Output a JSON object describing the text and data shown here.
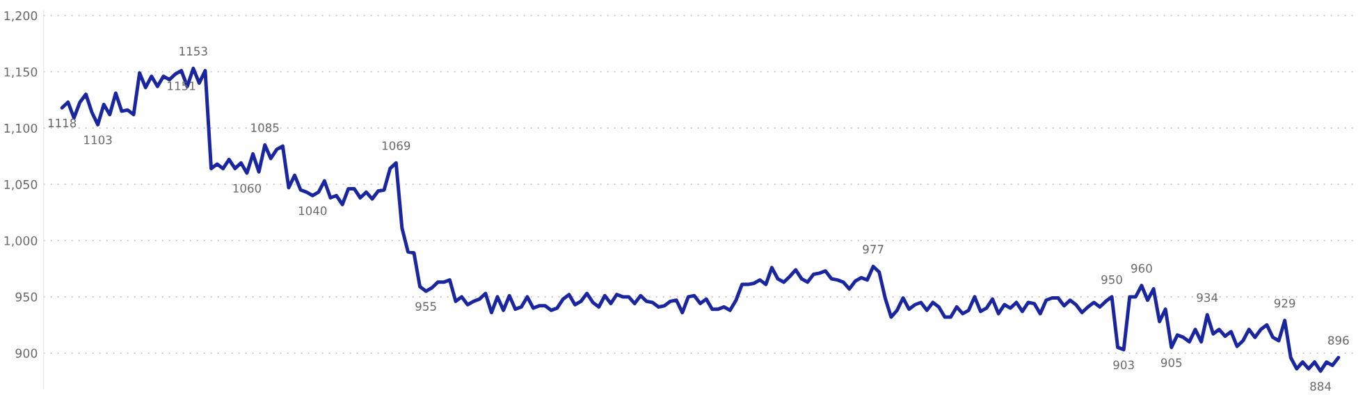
{
  "chart_data": {
    "type": "line",
    "categories": [
      null,
      null,
      null,
      null,
      null,
      null,
      null,
      null,
      null,
      null,
      null,
      null,
      null,
      null,
      null,
      null,
      null,
      null,
      null,
      null,
      null,
      null,
      null,
      null,
      null,
      null,
      null,
      null,
      null,
      null,
      null,
      null,
      null,
      null,
      null,
      null,
      null,
      null,
      null,
      null,
      null,
      null,
      null,
      null,
      null,
      null,
      null,
      null,
      null,
      null,
      null,
      null,
      null,
      null,
      null,
      null,
      null,
      null,
      null,
      null,
      null,
      null,
      null,
      null,
      null,
      null,
      null,
      null,
      null,
      null,
      null,
      null,
      null,
      null,
      null,
      null,
      null,
      null,
      null,
      null,
      null,
      null,
      null,
      null,
      null,
      null,
      null,
      null,
      null,
      null,
      null,
      null,
      null,
      null,
      null,
      null,
      null,
      null,
      null,
      null,
      null,
      null,
      null,
      null,
      null,
      null,
      null,
      null,
      null,
      null,
      null,
      null,
      null,
      null,
      null,
      null,
      null,
      null,
      null,
      null,
      null,
      null,
      null,
      null,
      null,
      null,
      null,
      null,
      null,
      null,
      null,
      null,
      null,
      null,
      null,
      null,
      null,
      null,
      null,
      null,
      null,
      null,
      null,
      null,
      null,
      null,
      null,
      null,
      null,
      null,
      null,
      null,
      null,
      null,
      null,
      null,
      null,
      null,
      null,
      null,
      null,
      null,
      null,
      null,
      null,
      null,
      null,
      null,
      null,
      null,
      null,
      null,
      null,
      null,
      null,
      null,
      null,
      null,
      null,
      null,
      null,
      null,
      null,
      null,
      null,
      null,
      null,
      null,
      null,
      null,
      null,
      null,
      null,
      null,
      null,
      null,
      null,
      null,
      null,
      null,
      null,
      null,
      null,
      null,
      null,
      null,
      null,
      null,
      null,
      null,
      null,
      null,
      null,
      null,
      null
    ],
    "series": [
      {
        "color": "#1a26a0",
        "values": [
          1118,
          1123,
          1109,
          1123,
          1130,
          1114,
          1103,
          1121,
          1112,
          1131,
          1115,
          1116,
          1112,
          1149,
          1136,
          1146,
          1137,
          1146,
          1143,
          1148,
          1151,
          1137,
          1153,
          1140,
          1151,
          1064,
          1068,
          1064,
          1072,
          1064,
          1069,
          1060,
          1077,
          1061,
          1085,
          1073,
          1081,
          1084,
          1047,
          1058,
          1045,
          1043,
          1040,
          1043,
          1053,
          1038,
          1040,
          1032,
          1046,
          1046,
          1038,
          1043,
          1037,
          1044,
          1045,
          1064,
          1069,
          1011,
          990,
          989,
          959,
          955,
          958,
          963,
          963,
          965,
          946,
          950,
          943,
          946,
          948,
          953,
          936,
          950,
          938,
          951,
          939,
          941,
          950,
          940,
          942,
          942,
          938,
          940,
          948,
          952,
          943,
          946,
          953,
          945,
          941,
          951,
          944,
          952,
          950,
          950,
          944,
          951,
          946,
          945,
          941,
          942,
          946,
          947,
          936,
          950,
          951,
          944,
          948,
          939,
          939,
          941,
          938,
          947,
          961,
          961,
          962,
          965,
          961,
          976,
          966,
          963,
          968,
          974,
          966,
          963,
          970,
          971,
          973,
          966,
          965,
          963,
          957,
          964,
          967,
          965,
          977,
          972,
          949,
          932,
          938,
          949,
          939,
          943,
          945,
          938,
          945,
          941,
          932,
          932,
          941,
          935,
          938,
          950,
          937,
          940,
          948,
          935,
          943,
          940,
          945,
          937,
          945,
          944,
          935,
          947,
          949,
          949,
          942,
          947,
          943,
          936,
          941,
          945,
          941,
          946,
          950,
          905,
          903,
          950,
          950,
          960,
          947,
          957,
          928,
          939,
          905,
          916,
          914,
          910,
          921,
          910,
          934,
          917,
          921,
          915,
          919,
          906,
          911,
          921,
          914,
          921,
          925,
          914,
          911,
          929,
          896,
          886,
          892,
          886,
          892,
          884,
          892,
          889,
          896
        ],
        "value_labels": [
          "1118",
          null,
          null,
          null,
          null,
          null,
          "1103",
          null,
          null,
          null,
          null,
          null,
          null,
          null,
          null,
          null,
          null,
          null,
          null,
          null,
          "1151",
          null,
          "1153",
          null,
          null,
          null,
          null,
          null,
          null,
          null,
          null,
          "1060",
          null,
          null,
          "1085",
          null,
          null,
          null,
          null,
          null,
          null,
          null,
          "1040",
          null,
          null,
          null,
          null,
          null,
          null,
          null,
          null,
          null,
          null,
          null,
          null,
          null,
          "1069",
          null,
          null,
          null,
          null,
          "955",
          null,
          null,
          null,
          null,
          null,
          null,
          null,
          null,
          null,
          null,
          null,
          null,
          null,
          null,
          null,
          null,
          null,
          null,
          null,
          null,
          null,
          null,
          null,
          null,
          null,
          null,
          null,
          null,
          null,
          null,
          null,
          null,
          null,
          null,
          null,
          null,
          null,
          null,
          null,
          null,
          null,
          null,
          null,
          null,
          null,
          null,
          null,
          null,
          null,
          null,
          null,
          null,
          null,
          null,
          null,
          null,
          null,
          null,
          null,
          null,
          null,
          null,
          null,
          null,
          null,
          null,
          null,
          null,
          null,
          null,
          null,
          null,
          null,
          null,
          "977",
          null,
          null,
          null,
          null,
          null,
          null,
          null,
          null,
          null,
          null,
          null,
          null,
          null,
          null,
          null,
          null,
          null,
          null,
          null,
          null,
          null,
          null,
          null,
          null,
          null,
          null,
          null,
          null,
          null,
          null,
          null,
          null,
          null,
          null,
          null,
          null,
          null,
          null,
          null,
          "950",
          null,
          "903",
          null,
          null,
          "960",
          null,
          null,
          null,
          null,
          "905",
          null,
          null,
          null,
          null,
          null,
          "934",
          null,
          null,
          null,
          null,
          null,
          null,
          null,
          null,
          null,
          null,
          null,
          null,
          "929",
          null,
          null,
          null,
          null,
          null,
          "884",
          null,
          null,
          "896"
        ]
      }
    ],
    "ylim": [
      868,
      1205
    ],
    "yticks": [
      {
        "value": 900,
        "label": "900"
      },
      {
        "value": 950,
        "label": "950"
      },
      {
        "value": 1000,
        "label": "1,000"
      },
      {
        "value": 1050,
        "label": "1,050"
      },
      {
        "value": 1100,
        "label": "1,100"
      },
      {
        "value": 1150,
        "label": "1,150"
      },
      {
        "value": 1200,
        "label": "1,200"
      }
    ],
    "grid": "y",
    "tick_labels": "y",
    "marker": "none",
    "line_style": "solid"
  }
}
